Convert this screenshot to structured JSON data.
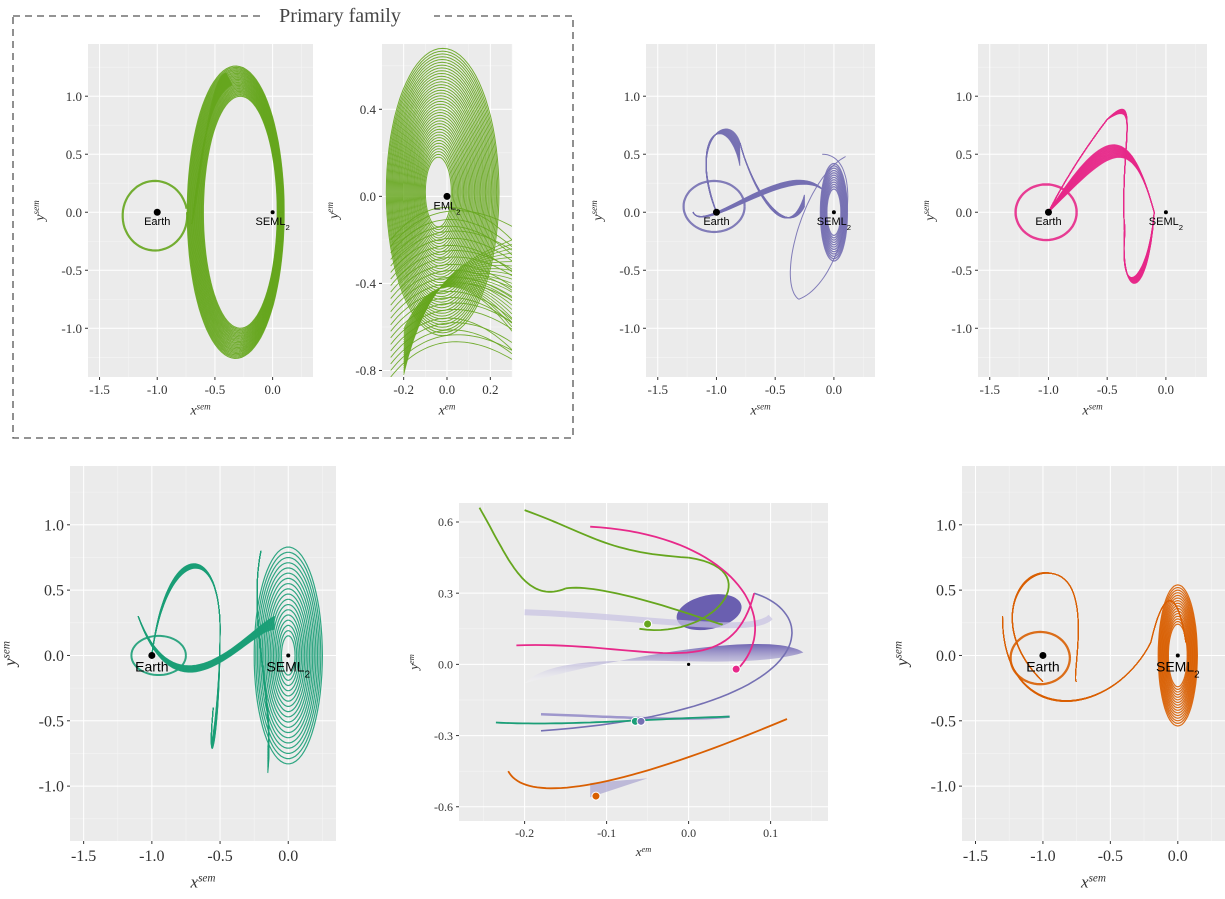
{
  "family_box": {
    "title": "Primary family"
  },
  "labels": {
    "earth": "Earth",
    "seml": "SEML",
    "seml_sub": "2",
    "eml": "EML",
    "eml_sub": "2",
    "x_sem": "x",
    "x_sem_sup": "sem",
    "y_sem": "y",
    "y_sem_sup": "sem",
    "x_em": "x",
    "x_em_sup": "em",
    "y_em": "y",
    "y_em_sup": "em"
  },
  "colors": {
    "green": "#66a61e",
    "purple": "#7570b3",
    "pink": "#e7298a",
    "teal": "#1b9e77",
    "orange": "#d95f02",
    "panel": "#ebebeb"
  },
  "chart_data": [
    {
      "id": "sem-green",
      "type": "line",
      "series_color": "green",
      "xlabel": "x^sem",
      "ylabel": "y^sem",
      "xlim": [
        -1.6,
        0.35
      ],
      "ylim": [
        -1.42,
        1.45
      ],
      "xticks": [
        "-1.5",
        "-1.0",
        "-0.5",
        "0.0"
      ],
      "xtick_values": [
        -1.5,
        -1.0,
        -0.5,
        0.0
      ],
      "yticks": [
        "1.0",
        "0.5",
        "0.0",
        "-0.5",
        "-1.0"
      ],
      "ytick_values": [
        1.0,
        0.5,
        0.0,
        -0.5,
        -1.0
      ],
      "bodies": [
        {
          "name": "Earth",
          "x": -1.0,
          "y": 0.0
        },
        {
          "name": "SEML2",
          "x": 0.0,
          "y": 0.0
        }
      ],
      "pattern": "loop-and-kidney"
    },
    {
      "id": "em-green",
      "type": "line",
      "series_color": "green",
      "xlabel": "x^em",
      "ylabel": "y^em",
      "xlim": [
        -0.3,
        0.3
      ],
      "ylim": [
        -0.83,
        0.7
      ],
      "xticks": [
        "-0.2",
        "0.0",
        "0.2"
      ],
      "xtick_values": [
        -0.2,
        0.0,
        0.2
      ],
      "yticks": [
        "0.4",
        "0.0",
        "-0.4",
        "-0.8"
      ],
      "ytick_values": [
        0.4,
        0.0,
        -0.4,
        -0.8
      ],
      "bodies": [
        {
          "name": "EML2",
          "x": 0.0,
          "y": 0.0
        }
      ],
      "pattern": "em-ellipses"
    },
    {
      "id": "sem-purple",
      "type": "line",
      "series_color": "purple",
      "xlabel": "x^sem",
      "ylabel": "y^sem",
      "xlim": [
        -1.6,
        0.35
      ],
      "ylim": [
        -1.42,
        1.45
      ],
      "xticks": [
        "-1.5",
        "-1.0",
        "-0.5",
        "0.0"
      ],
      "xtick_values": [
        -1.5,
        -1.0,
        -0.5,
        0.0
      ],
      "yticks": [
        "1.0",
        "0.5",
        "0.0",
        "-0.5",
        "-1.0"
      ],
      "ytick_values": [
        1.0,
        0.5,
        0.0,
        -0.5,
        -1.0
      ],
      "bodies": [
        {
          "name": "Earth",
          "x": -1.0,
          "y": 0.0
        },
        {
          "name": "SEML2",
          "x": 0.0,
          "y": 0.0
        }
      ],
      "pattern": "petal-and-loops"
    },
    {
      "id": "sem-pink",
      "type": "line",
      "series_color": "pink",
      "xlabel": "x^sem",
      "ylabel": "y^sem",
      "xlim": [
        -1.6,
        0.35
      ],
      "ylim": [
        -1.42,
        1.45
      ],
      "xticks": [
        "-1.5",
        "-1.0",
        "-0.5",
        "0.0"
      ],
      "xtick_values": [
        -1.5,
        -1.0,
        -0.5,
        0.0
      ],
      "yticks": [
        "1.0",
        "0.5",
        "0.0",
        "-0.5",
        "-1.0"
      ],
      "ytick_values": [
        1.0,
        0.5,
        0.0,
        -0.5,
        -1.0
      ],
      "bodies": [
        {
          "name": "Earth",
          "x": -1.0,
          "y": 0.0
        },
        {
          "name": "SEML2",
          "x": 0.0,
          "y": 0.0
        }
      ],
      "pattern": "pretzel"
    },
    {
      "id": "sem-teal",
      "type": "line",
      "series_color": "teal",
      "xlabel": "x^sem",
      "ylabel": "y^sem",
      "xlim": [
        -1.6,
        0.35
      ],
      "ylim": [
        -1.42,
        1.45
      ],
      "xticks": [
        "-1.5",
        "-1.0",
        "-0.5",
        "0.0"
      ],
      "xtick_values": [
        -1.5,
        -1.0,
        -0.5,
        0.0
      ],
      "yticks": [
        "1.0",
        "0.5",
        "0.0",
        "-0.5",
        "-1.0"
      ],
      "ytick_values": [
        1.0,
        0.5,
        0.0,
        -0.5,
        -1.0
      ],
      "bodies": [
        {
          "name": "Earth",
          "x": -1.0,
          "y": 0.0
        },
        {
          "name": "SEML2",
          "x": 0.0,
          "y": 0.0
        }
      ],
      "pattern": "tangle"
    },
    {
      "id": "em-summary",
      "type": "line",
      "series_color": "mixed",
      "xlabel": "x^em",
      "ylabel": "y^em",
      "xlim": [
        -0.28,
        0.17
      ],
      "ylim": [
        -0.66,
        0.68
      ],
      "xticks": [
        "-0.2",
        "-0.1",
        "0.0",
        "0.1"
      ],
      "xtick_values": [
        -0.2,
        -0.1,
        0.0,
        0.1
      ],
      "yticks": [
        "0.6",
        "0.3",
        "0.0",
        "-0.3",
        "-0.6"
      ],
      "ytick_values": [
        0.6,
        0.3,
        0.0,
        -0.3,
        -0.6
      ],
      "bodies": [],
      "pattern": "em-branches"
    },
    {
      "id": "sem-orange",
      "type": "line",
      "series_color": "orange",
      "xlabel": "x^sem",
      "ylabel": "y^sem",
      "xlim": [
        -1.6,
        0.35
      ],
      "ylim": [
        -1.42,
        1.45
      ],
      "xticks": [
        "-1.5",
        "-1.0",
        "-0.5",
        "0.0"
      ],
      "xtick_values": [
        -1.5,
        -1.0,
        -0.5,
        0.0
      ],
      "yticks": [
        "1.0",
        "0.5",
        "0.0",
        "-0.5",
        "-1.0"
      ],
      "ytick_values": [
        1.0,
        0.5,
        0.0,
        -0.5,
        -1.0
      ],
      "bodies": [
        {
          "name": "Earth",
          "x": -1.0,
          "y": 0.0
        },
        {
          "name": "SEML2",
          "x": 0.0,
          "y": 0.0
        }
      ],
      "pattern": "s-curve"
    }
  ]
}
